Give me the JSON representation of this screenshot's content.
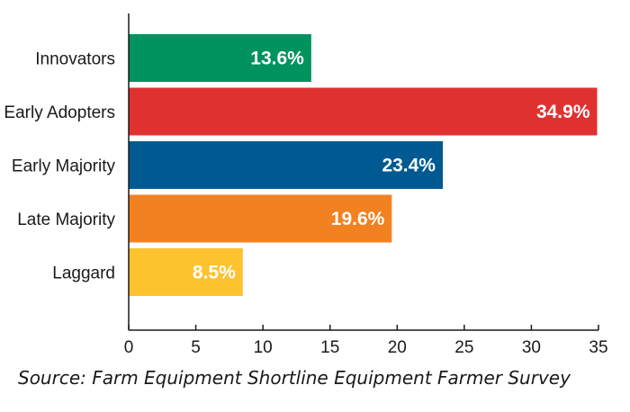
{
  "chart_data": {
    "type": "bar",
    "orientation": "horizontal",
    "categories": [
      "Innovators",
      "Early Adopters",
      "Early Majority",
      "Late Majority",
      "Laggard"
    ],
    "values": [
      13.6,
      34.9,
      23.4,
      19.6,
      8.5
    ],
    "data_labels": [
      "13.6%",
      "34.9%",
      "23.4%",
      "19.6%",
      "8.5%"
    ],
    "colors": [
      "#00935e",
      "#e03131",
      "#005a92",
      "#f28121",
      "#fcc32f"
    ],
    "xlim": [
      0,
      35
    ],
    "xticks": [
      0,
      5,
      10,
      15,
      20,
      25,
      30,
      35
    ],
    "grid": false,
    "legend": "none"
  },
  "source_note": "Source: Farm Equipment Shortline Equipment Farmer Survey"
}
